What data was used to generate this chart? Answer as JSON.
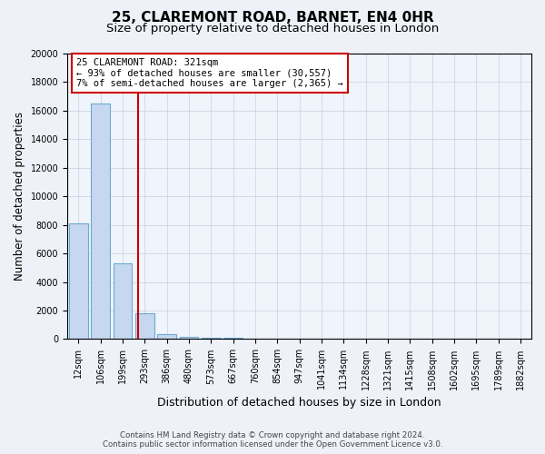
{
  "title1": "25, CLAREMONT ROAD, BARNET, EN4 0HR",
  "title2": "Size of property relative to detached houses in London",
  "xlabel": "Distribution of detached houses by size in London",
  "ylabel": "Number of detached properties",
  "categories": [
    "12sqm",
    "106sqm",
    "199sqm",
    "293sqm",
    "386sqm",
    "480sqm",
    "573sqm",
    "667sqm",
    "760sqm",
    "854sqm",
    "947sqm",
    "1041sqm",
    "1134sqm",
    "1228sqm",
    "1321sqm",
    "1415sqm",
    "1508sqm",
    "1602sqm",
    "1695sqm",
    "1789sqm",
    "1882sqm"
  ],
  "values": [
    8100,
    16500,
    5300,
    1800,
    350,
    150,
    100,
    70,
    50,
    40,
    30,
    20,
    15,
    12,
    10,
    8,
    7,
    6,
    5,
    4,
    4
  ],
  "bar_color": "#c6d8ef",
  "bar_edge_color": "#6aaad4",
  "bar_linewidth": 0.8,
  "vline_x": 2.72,
  "vline_color": "#cc0000",
  "vline_linewidth": 1.5,
  "annotation_text": "25 CLAREMONT ROAD: 321sqm\n← 93% of detached houses are smaller (30,557)\n7% of semi-detached houses are larger (2,365) →",
  "annotation_box_color": "white",
  "annotation_box_edge": "#cc0000",
  "ylim": [
    0,
    20000
  ],
  "yticks": [
    0,
    2000,
    4000,
    6000,
    8000,
    10000,
    12000,
    14000,
    16000,
    18000,
    20000
  ],
  "footer1": "Contains HM Land Registry data © Crown copyright and database right 2024.",
  "footer2": "Contains public sector information licensed under the Open Government Licence v3.0.",
  "bg_color": "#eef2f8",
  "plot_bg_color": "#f0f4fb",
  "grid_color": "#c8d0e0",
  "title1_fontsize": 11,
  "title2_fontsize": 9.5,
  "tick_fontsize": 7,
  "ylabel_fontsize": 8.5,
  "xlabel_fontsize": 9,
  "annotation_fontsize": 7.5,
  "figwidth": 6.0,
  "figheight": 5.0
}
